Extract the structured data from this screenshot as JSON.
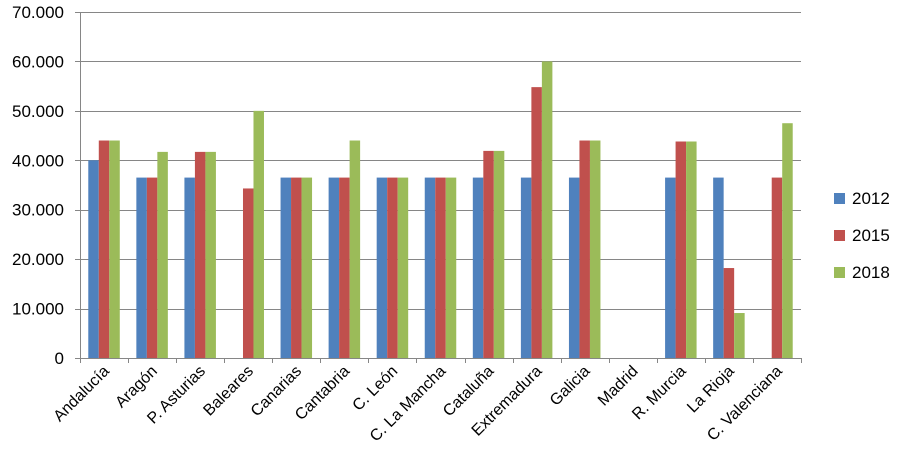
{
  "chart_data": {
    "type": "bar",
    "categories": [
      "Andalucía",
      "Aragón",
      "P. Asturias",
      "Baleares",
      "Canarias",
      "Cantabria",
      "C. León",
      "C. La Mancha",
      "Cataluña",
      "Extremadura",
      "Galicia",
      "Madrid",
      "R. Murcia",
      "La Rioja",
      "C. Valenciana"
    ],
    "series": [
      {
        "name": "2012",
        "color": "#4f81bd",
        "values": [
          40000,
          36500,
          36500,
          null,
          36500,
          36500,
          36500,
          36500,
          36500,
          36500,
          36500,
          null,
          36500,
          36500,
          null
        ]
      },
      {
        "name": "2015",
        "color": "#c0504d",
        "values": [
          44000,
          36500,
          41700,
          34300,
          36500,
          36500,
          36500,
          36500,
          41900,
          54800,
          44000,
          null,
          43800,
          18200,
          36500
        ]
      },
      {
        "name": "2018",
        "color": "#9bbb59",
        "values": [
          44000,
          41700,
          41700,
          50000,
          36500,
          44000,
          36500,
          36500,
          41900,
          60000,
          44000,
          null,
          43800,
          9100,
          47500
        ]
      }
    ],
    "ylim": [
      0,
      70000
    ],
    "yticks": [
      0,
      10000,
      20000,
      30000,
      40000,
      50000,
      60000,
      70000
    ],
    "ytick_labels": [
      "0",
      "10.000",
      "20.000",
      "30.000",
      "40.000",
      "50.000",
      "60.000",
      "70.000"
    ],
    "grid": true,
    "legend_position": "right"
  }
}
